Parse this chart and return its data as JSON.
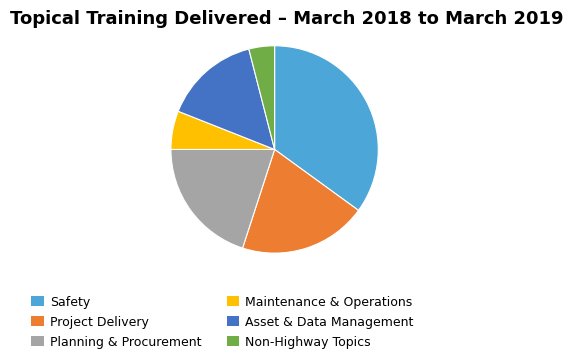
{
  "title": "Topical Training Delivered – March 2018 to March 2019",
  "labels": [
    "Safety",
    "Project Delivery",
    "Planning & Procurement",
    "Maintenance & Operations",
    "Asset & Data Management",
    "Non-Highway Topics"
  ],
  "values": [
    35,
    20,
    20,
    6,
    15,
    4
  ],
  "colors": [
    "#4DA6D8",
    "#ED7D31",
    "#A5A5A5",
    "#FFC000",
    "#4472C4",
    "#70AD47"
  ],
  "title_fontsize": 13,
  "legend_fontsize": 9,
  "background_color": "#FFFFFF",
  "legend_col1": [
    "Safety",
    "Planning & Procurement",
    "Asset & Data Management"
  ],
  "legend_col2": [
    "Project Delivery",
    "Maintenance & Operations",
    "Non-Highway Topics"
  ]
}
